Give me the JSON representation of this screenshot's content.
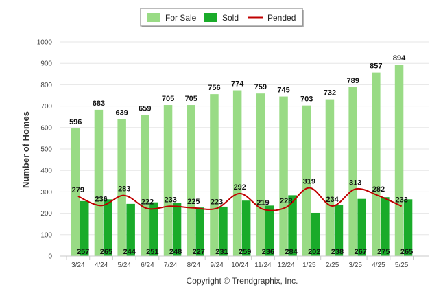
{
  "chart_data": {
    "type": "bar",
    "categories": [
      "3/24",
      "4/24",
      "5/24",
      "6/24",
      "7/24",
      "8/24",
      "9/24",
      "10/24",
      "11/24",
      "12/24",
      "1/25",
      "2/25",
      "3/25",
      "4/25",
      "5/25"
    ],
    "series": [
      {
        "name": "For Sale",
        "type": "bar",
        "color": "#99db85",
        "values": [
          596,
          683,
          639,
          659,
          705,
          705,
          756,
          774,
          759,
          745,
          703,
          732,
          789,
          857,
          894
        ]
      },
      {
        "name": "Sold",
        "type": "bar",
        "color": "#1aab2a",
        "values": [
          257,
          265,
          244,
          251,
          248,
          227,
          231,
          259,
          236,
          284,
          202,
          238,
          267,
          275,
          265
        ]
      },
      {
        "name": "Pended",
        "type": "line",
        "color": "#c00000",
        "values": [
          279,
          236,
          283,
          222,
          233,
          225,
          223,
          292,
          219,
          228,
          319,
          234,
          313,
          282,
          233
        ]
      }
    ],
    "title": "",
    "xlabel": "",
    "ylabel": "Number of Homes",
    "ylim": [
      0,
      1000
    ],
    "yticks": [
      0,
      100,
      200,
      300,
      400,
      500,
      600,
      700,
      800,
      900,
      1000
    ],
    "grid": true,
    "legend_position": "top-center",
    "copyright": "Copyright © Trendgraphix, Inc."
  }
}
